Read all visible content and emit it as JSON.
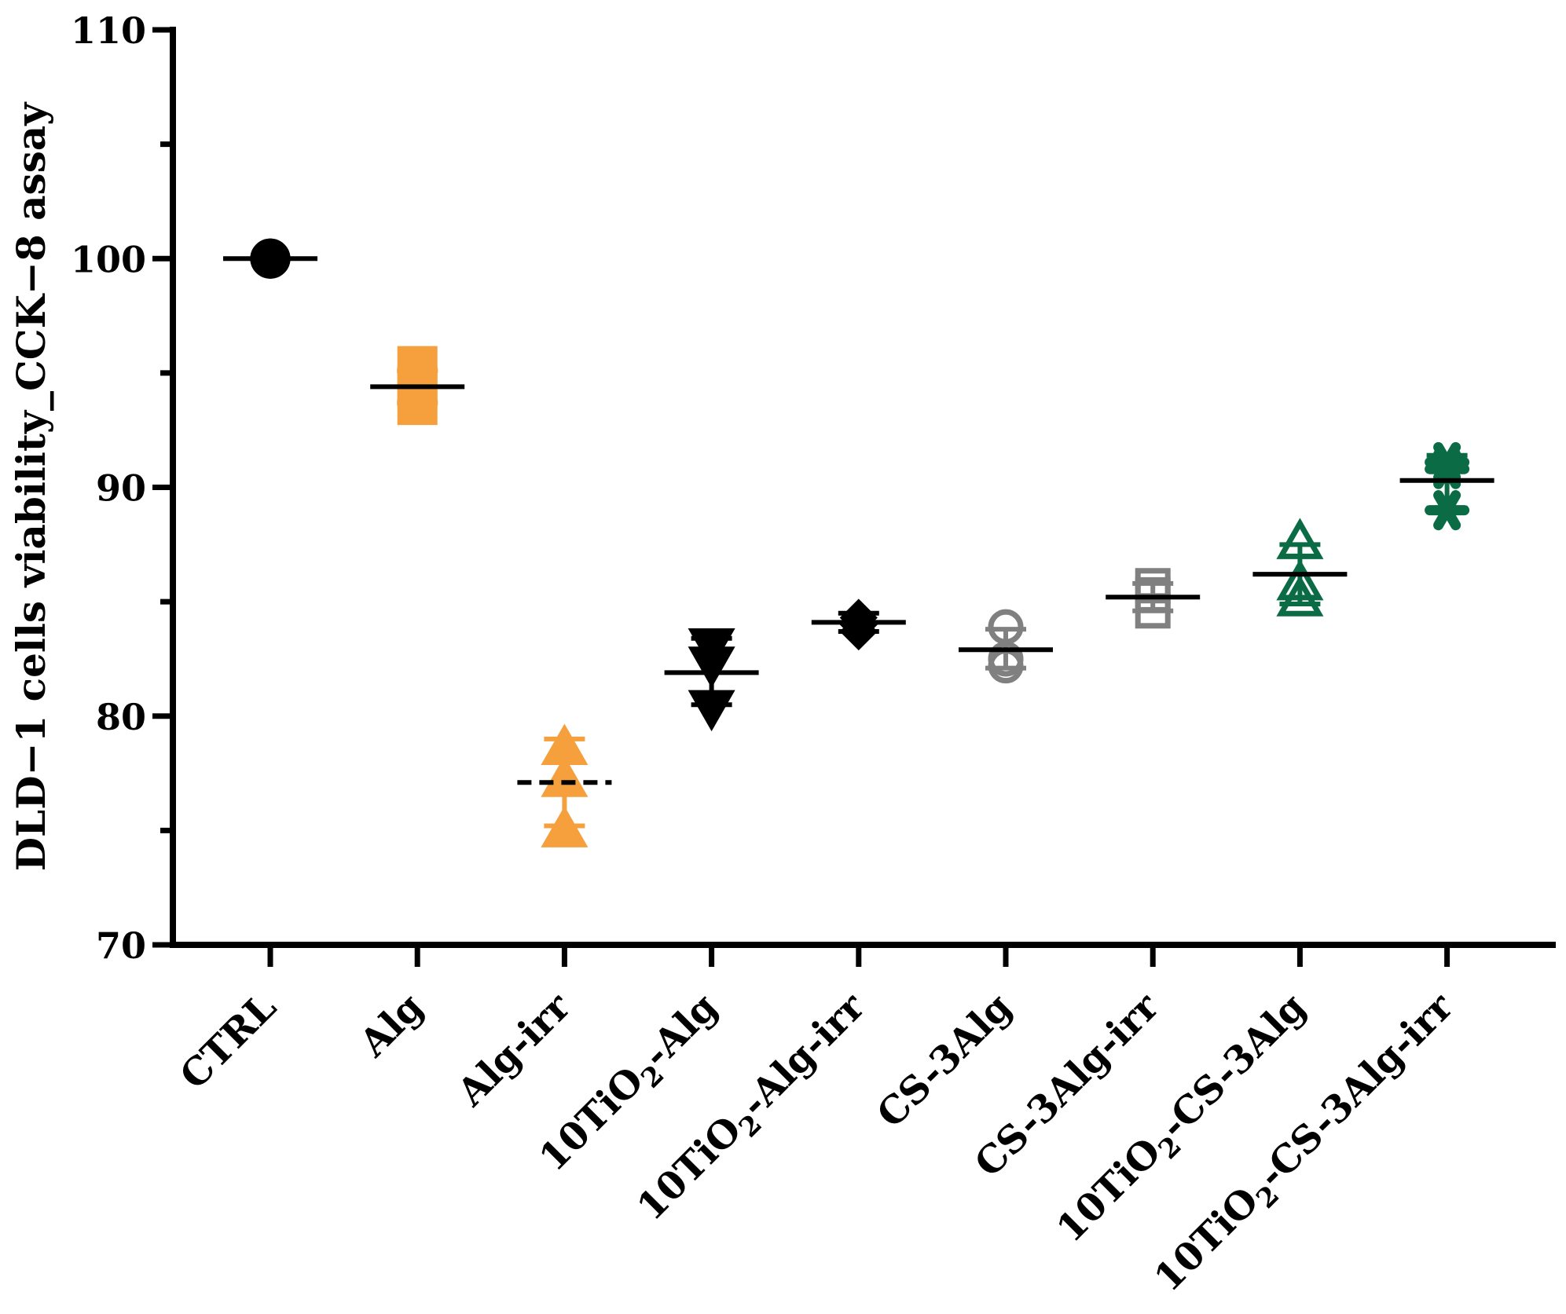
{
  "chart_data": {
    "type": "scatter",
    "title": "",
    "xlabel": "",
    "ylabel": "DLD−1 cells viability_CCK−8 assay",
    "ylim": [
      70,
      110
    ],
    "yticks": [
      70,
      80,
      90,
      100,
      110
    ],
    "grid": false,
    "legend": "none",
    "categories": [
      {
        "label": "CTRL",
        "sub": "",
        "rest": ""
      },
      {
        "label": "Alg",
        "sub": "",
        "rest": ""
      },
      {
        "label": "Alg-irr",
        "sub": "",
        "rest": ""
      },
      {
        "label": "10TiO",
        "sub": "2",
        "rest": "-Alg"
      },
      {
        "label": "10TiO",
        "sub": "2",
        "rest": "-Alg-irr"
      },
      {
        "label": "CS-3Alg",
        "sub": "",
        "rest": ""
      },
      {
        "label": "CS-3Alg-irr",
        "sub": "",
        "rest": ""
      },
      {
        "label": "10TiO",
        "sub": "2",
        "rest": "-CS-3Alg"
      },
      {
        "label": "10TiO",
        "sub": "2",
        "rest": "-CS-3Alg-irr"
      }
    ],
    "series": [
      {
        "name": "CTRL",
        "marker": "circle",
        "fill": true,
        "color": "#000000",
        "points": [
          100,
          100,
          100
        ],
        "mean": 100,
        "err": [
          100,
          100
        ],
        "mean_style": "solid"
      },
      {
        "name": "Alg",
        "marker": "square",
        "fill": true,
        "color": "#F5A03C",
        "points": [
          95.3,
          94.4,
          93.6
        ],
        "mean": 94.4,
        "err": [
          93.7,
          95.1
        ],
        "mean_style": "solid"
      },
      {
        "name": "Alg-irr",
        "marker": "triangle-up",
        "fill": true,
        "color": "#F5A03C",
        "points": [
          78.6,
          77.2,
          75.0
        ],
        "mean": 77.1,
        "err": [
          75.2,
          79.0
        ],
        "mean_style": "dashed"
      },
      {
        "name": "10TiO2-Alg",
        "marker": "triangle-down",
        "fill": true,
        "color": "#000000",
        "points": [
          83.1,
          82.3,
          80.4
        ],
        "mean": 81.9,
        "err": [
          80.5,
          83.4
        ],
        "mean_style": "solid"
      },
      {
        "name": "10TiO2-Alg-irr",
        "marker": "diamond",
        "fill": true,
        "color": "#000000",
        "points": [
          84.3,
          84.0,
          83.7
        ],
        "mean": 84.1,
        "err": [
          83.7,
          84.5
        ],
        "mean_style": "solid"
      },
      {
        "name": "CS-3Alg",
        "marker": "circle",
        "fill": false,
        "color": "#808080",
        "points": [
          83.9,
          82.5,
          82.2
        ],
        "mean": 82.9,
        "err": [
          82.1,
          83.8
        ],
        "mean_style": "solid"
      },
      {
        "name": "CS-3Alg-irr",
        "marker": "square",
        "fill": false,
        "color": "#808080",
        "points": [
          85.7,
          85.3,
          84.6
        ],
        "mean": 85.2,
        "err": [
          84.6,
          85.8
        ],
        "mean_style": "solid"
      },
      {
        "name": "10TiO2-CS-3Alg",
        "marker": "triangle-up",
        "fill": false,
        "color": "#0B6B45",
        "points": [
          87.6,
          85.8,
          85.1
        ],
        "mean": 86.2,
        "err": [
          84.9,
          87.5
        ],
        "mean_style": "solid"
      },
      {
        "name": "10TiO2-CS-3Alg-irr",
        "marker": "asterisk",
        "fill": true,
        "color": "#0B6B45",
        "points": [
          91.1,
          90.8,
          89.0
        ],
        "mean": 90.3,
        "err": [
          89.1,
          91.4
        ],
        "mean_style": "solid"
      }
    ]
  }
}
